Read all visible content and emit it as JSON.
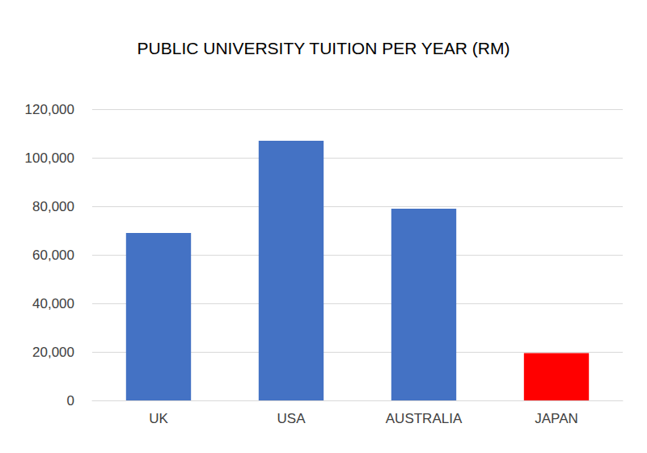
{
  "chart_data": {
    "type": "bar",
    "title": "PUBLIC UNIVERSITY TUITION PER YEAR (RM)",
    "categories": [
      "UK",
      "USA",
      "AUSTRALIA",
      "JAPAN"
    ],
    "values": [
      69000,
      107000,
      79000,
      19500
    ],
    "colors": [
      "#4472c4",
      "#4472c4",
      "#4472c4",
      "#ff0000"
    ],
    "ylim": [
      0,
      120000
    ],
    "yticks": [
      0,
      {
        "value": 20000,
        "label": "20,000"
      },
      {
        "value": 40000,
        "label": "40,000"
      },
      {
        "value": 60000,
        "label": "60,000"
      },
      {
        "value": 80000,
        "label": "80,000"
      },
      {
        "value": 100000,
        "label": "100,000"
      },
      {
        "value": 120000,
        "label": "120,000"
      }
    ],
    "grid": true
  }
}
